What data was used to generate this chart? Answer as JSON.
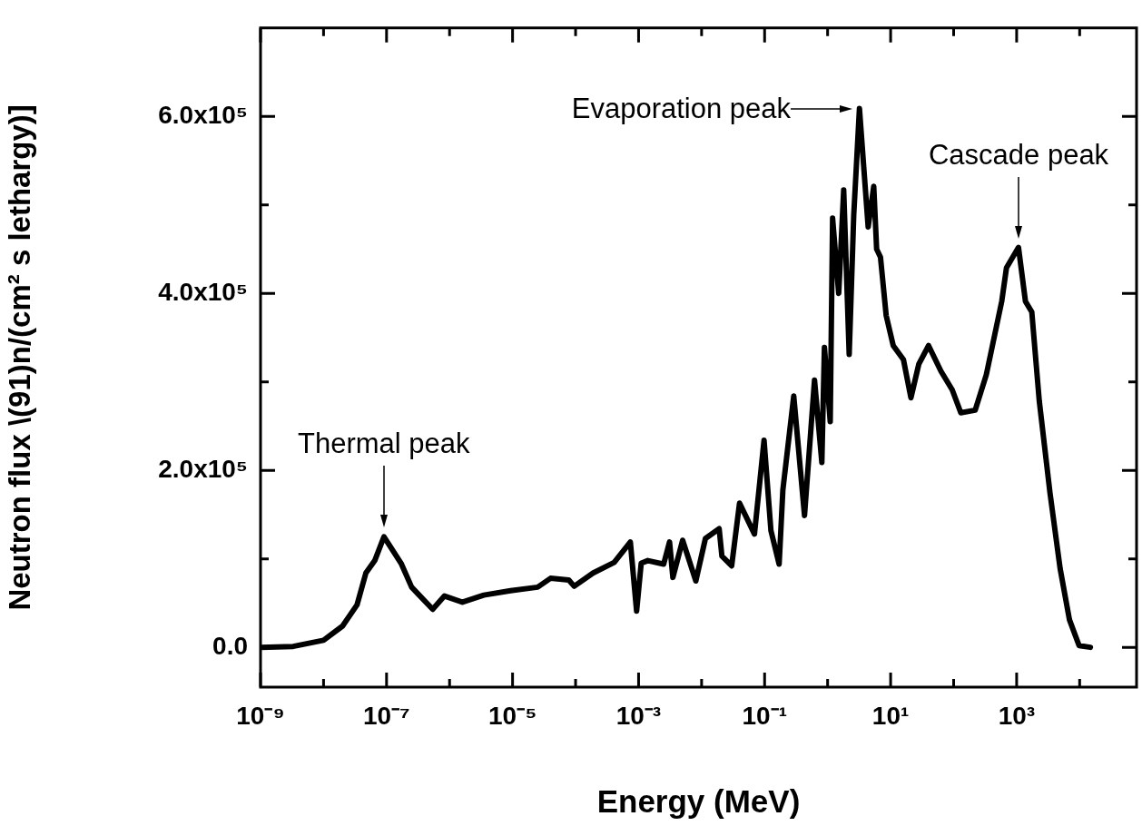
{
  "chart_data": {
    "type": "line",
    "xlabel": "Energy (MeV)",
    "ylabel": "Neutron flux \\(91)n/(cm² s lethargy)]",
    "log": "x",
    "xlim": [
      1e-09,
      80000.0
    ],
    "xticks": [
      {
        "value": 1e-09,
        "label": "10⁻⁹"
      },
      {
        "value": 1e-08,
        "label": null
      },
      {
        "value": 1e-07,
        "label": "10⁻⁷"
      },
      {
        "value": 1e-06,
        "label": null
      },
      {
        "value": 1e-05,
        "label": "10⁻⁵"
      },
      {
        "value": 0.0001,
        "label": null
      },
      {
        "value": 0.001,
        "label": "10⁻³"
      },
      {
        "value": 0.01,
        "label": null
      },
      {
        "value": 0.1,
        "label": "10⁻¹"
      },
      {
        "value": 1,
        "label": null
      },
      {
        "value": 10,
        "label": "10¹"
      },
      {
        "value": 100,
        "label": null
      },
      {
        "value": 1000,
        "label": "10³"
      },
      {
        "value": 10000,
        "label": null
      }
    ],
    "ylim": [
      -45000,
      700000
    ],
    "yticks": [
      {
        "value": 0,
        "label": "0.0"
      },
      {
        "value": 100000,
        "label": null
      },
      {
        "value": 200000,
        "label": "2.0x10⁵"
      },
      {
        "value": 300000,
        "label": null
      },
      {
        "value": 400000,
        "label": "4.0x10⁵"
      },
      {
        "value": 500000,
        "label": null
      },
      {
        "value": 600000,
        "label": "6.0x10⁵"
      }
    ],
    "marker": "none",
    "line_style": "solid",
    "series": [
      {
        "color": "#000000",
        "x": [
          1e-09,
          3.3e-09,
          1e-08,
          2e-08,
          3.4e-08,
          4.7e-08,
          6.5e-08,
          9.1e-08,
          1.7e-07,
          2.5e-07,
          3.4e-07,
          5.4e-07,
          8.3e-07,
          1.6e-06,
          3.5e-06,
          9.3e-06,
          2.5e-05,
          4e-05,
          7.8e-05,
          9.5e-05,
          0.00019,
          0.00041,
          0.00074,
          0.00093,
          0.0011,
          0.0014,
          0.0025,
          0.0031,
          0.0035,
          0.005,
          0.0081,
          0.0115,
          0.019,
          0.021,
          0.03,
          0.04,
          0.069,
          0.098,
          0.126,
          0.17,
          0.195,
          0.29,
          0.43,
          0.62,
          0.81,
          0.89,
          1.1,
          1.2,
          1.5,
          1.8,
          2.2,
          2.6,
          3.2,
          4.4,
          5.4,
          6.0,
          6.9,
          8.5,
          11,
          16,
          21,
          28,
          40,
          63,
          95,
          130,
          220,
          330,
          580,
          690,
          1070,
          1380,
          1740,
          2290,
          3390,
          4900,
          6900,
          9800,
          14800
        ],
        "values": [
          0,
          1000,
          8000,
          24000,
          48000,
          84000,
          98000,
          125000,
          95000,
          68000,
          58000,
          43000,
          58000,
          51000,
          59000,
          64000,
          68000,
          78000,
          76000,
          69000,
          84000,
          96000,
          119000,
          41000,
          95000,
          98000,
          94000,
          119000,
          79000,
          121000,
          75000,
          123000,
          134000,
          103000,
          92000,
          163000,
          128000,
          234000,
          132000,
          94000,
          178000,
          284000,
          149000,
          302000,
          209000,
          339000,
          255000,
          485000,
          400000,
          517000,
          331000,
          489000,
          609000,
          475000,
          521000,
          450000,
          441000,
          375000,
          341000,
          325000,
          282000,
          320000,
          341000,
          312000,
          291000,
          265000,
          268000,
          308000,
          391000,
          429000,
          452000,
          391000,
          379000,
          278000,
          174000,
          89000,
          31000,
          2000,
          0
        ]
      }
    ],
    "annotations": [
      {
        "text": "Thermal peak",
        "x": 9.1e-08,
        "y": 125000
      },
      {
        "text": "Evaporation peak",
        "x": 3.2,
        "y": 609000
      },
      {
        "text": "Cascade peak",
        "x": 1070,
        "y": 452000
      }
    ]
  }
}
